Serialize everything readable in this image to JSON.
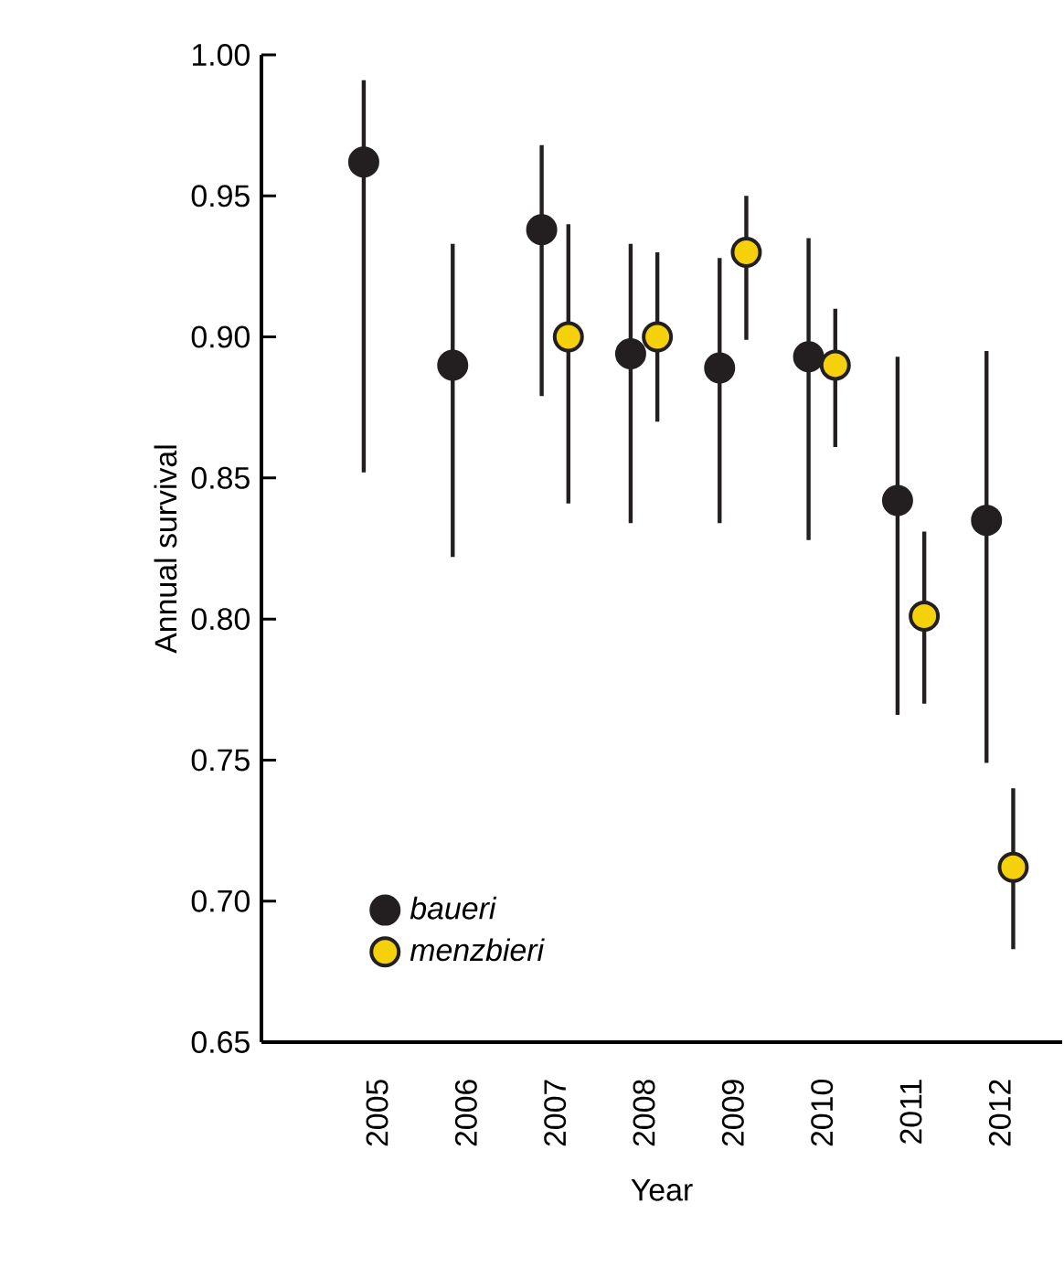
{
  "chart_data": {
    "type": "scatter",
    "xlabel": "Year",
    "ylabel": "Annual survival",
    "categories": [
      "2005",
      "2006",
      "2007",
      "2008",
      "2009",
      "2010",
      "2011",
      "2012"
    ],
    "series": [
      {
        "name": "baueri",
        "color": "#231f20",
        "values": [
          0.962,
          0.89,
          0.938,
          0.894,
          0.889,
          0.893,
          0.842,
          0.835
        ],
        "errors": [
          [
            0.852,
            0.991
          ],
          [
            0.822,
            0.933
          ],
          [
            0.879,
            0.968
          ],
          [
            0.834,
            0.933
          ],
          [
            0.834,
            0.928
          ],
          [
            0.828,
            0.935
          ],
          [
            0.766,
            0.893
          ],
          [
            0.749,
            0.895
          ]
        ]
      },
      {
        "name": "menzbieri",
        "color": "#f5d10c",
        "values": [
          null,
          null,
          0.9,
          0.9,
          0.93,
          0.89,
          0.801,
          0.712
        ],
        "errors": [
          null,
          null,
          [
            0.841,
            0.94
          ],
          [
            0.87,
            0.93
          ],
          [
            0.899,
            0.95
          ],
          [
            0.861,
            0.91
          ],
          [
            0.77,
            0.831
          ],
          [
            0.683,
            0.74
          ]
        ]
      }
    ],
    "ylim": [
      0.65,
      1.0
    ],
    "yticks": [
      {
        "value": 0.65,
        "label": "0.65"
      },
      {
        "value": 0.7,
        "label": "0.70"
      },
      {
        "value": 0.75,
        "label": "0.75"
      },
      {
        "value": 0.8,
        "label": "0.80"
      },
      {
        "value": 0.85,
        "label": "0.85"
      },
      {
        "value": 0.9,
        "label": "0.90"
      },
      {
        "value": 0.95,
        "label": "0.95"
      },
      {
        "value": 1.0,
        "label": "1.00"
      }
    ],
    "marker": "circle",
    "legend": "bottom left",
    "grid": false
  }
}
